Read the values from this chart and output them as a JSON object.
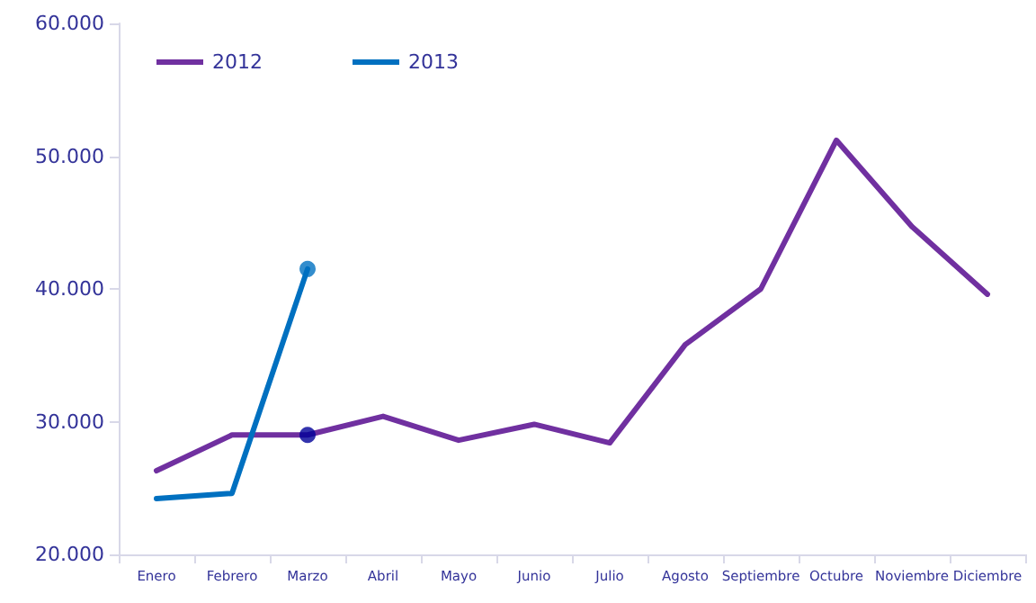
{
  "chart_data": {
    "type": "line",
    "categories": [
      "Enero",
      "Febrero",
      "Marzo",
      "Abril",
      "Mayo",
      "Junio",
      "Julio",
      "Agosto",
      "Septiembre",
      "Octubre",
      "Noviembre",
      "Diciembre"
    ],
    "series": [
      {
        "name": "2012",
        "color": "#7030a0",
        "values": [
          26300,
          29000,
          29000,
          30400,
          28600,
          29800,
          28400,
          35800,
          40000,
          51200,
          44700,
          39600
        ]
      },
      {
        "name": "2013",
        "color": "#0070c0",
        "values": [
          24200,
          24600,
          41500,
          null,
          null,
          null,
          null,
          null,
          null,
          null,
          null,
          null
        ]
      },
      {
        "type": "scatter",
        "marker": "circle",
        "color": "#000099",
        "x": [
          "Marzo"
        ],
        "values": [
          29000
        ]
      },
      {
        "type": "scatter",
        "marker": "circle",
        "color": "#0070c0",
        "x": [
          "Marzo"
        ],
        "values": [
          41500
        ]
      }
    ],
    "ylim": [
      20000,
      60000
    ],
    "yticks": [
      {
        "value": 20000,
        "label": "20.000"
      },
      {
        "value": 30000,
        "label": "30.000"
      },
      {
        "value": 40000,
        "label": "40.000"
      },
      {
        "value": 50000,
        "label": "50.000"
      },
      {
        "value": 60000,
        "label": "60.000"
      }
    ],
    "grid": false,
    "legend": "top left",
    "marker": "none",
    "line_style": "solid"
  }
}
